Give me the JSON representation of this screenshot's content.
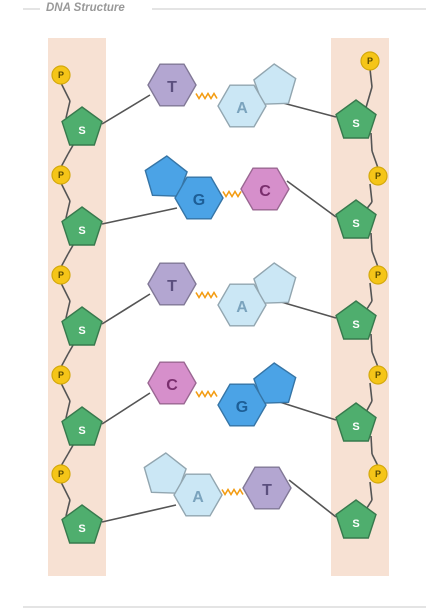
{
  "header": {
    "title": "DNA Structure"
  },
  "colors": {
    "backbone_bg": "#f7e1d3",
    "phosphate": "#f5c518",
    "sugar": "#4fae6e",
    "thymine": "#b3a6d1",
    "adenine": "#cbe7f5",
    "guanine": "#4ba3e6",
    "cytosine": "#d68fcb",
    "bond": "#f39c12"
  },
  "labels": {
    "phosphate": "P",
    "sugar": "S"
  },
  "pairs": [
    {
      "left": "T",
      "right": "A"
    },
    {
      "left": "G",
      "right": "C"
    },
    {
      "left": "T",
      "right": "A"
    },
    {
      "left": "C",
      "right": "G"
    },
    {
      "left": "A",
      "right": "T"
    }
  ]
}
